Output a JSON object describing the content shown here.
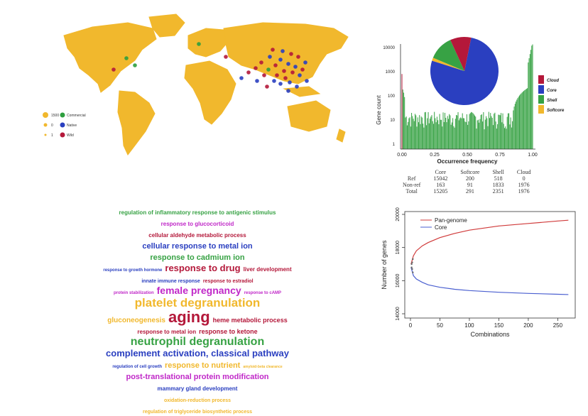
{
  "colors": {
    "map_land": "#f1b82d",
    "commercial": "#2e9e3e",
    "native": "#2a3fc0",
    "wild": "#b4183a",
    "cloud": "#b4183a",
    "core": "#2a3fc0",
    "shell": "#37a244",
    "softcore": "#f1b82d",
    "pan_line": "#d03a3a",
    "core_line": "#4a5fd0"
  },
  "map": {
    "legend": {
      "size_labels": [
        "1500",
        "0",
        "1"
      ],
      "type_labels": [
        "Commercial",
        "Native",
        "Wild"
      ]
    }
  },
  "hist": {
    "ylabel": "Gene count",
    "xlabel": "Occurrence frequency",
    "yticks": [
      "10000",
      "1000",
      "100",
      "10",
      "1"
    ],
    "xticks": [
      "0.00",
      "0.25",
      "0.50",
      "0.75",
      "1.00"
    ],
    "legend": [
      "Cloud",
      "Core",
      "Shell",
      "Softcore"
    ]
  },
  "table": {
    "headers": [
      "",
      "Core",
      "Softcore",
      "Shell",
      "Cloud"
    ],
    "rows": [
      [
        "Ref",
        "15042",
        "200",
        "518",
        "0"
      ],
      [
        "Non-ref",
        "163",
        "91",
        "1833",
        "1976"
      ],
      [
        "Total",
        "15205",
        "291",
        "2351",
        "1976"
      ]
    ]
  },
  "wordcloud": {
    "terms": [
      {
        "text": "regulation of inflammatory response to antigenic stimulus",
        "color": "#37a244",
        "size": 8
      },
      {
        "text": "response to glucocorticoid",
        "color": "#c028c8",
        "size": 8
      },
      {
        "text": "cellular aldehyde metabolic process",
        "color": "#b4183a",
        "size": 8
      },
      {
        "text": "cellular response to metal ion",
        "color": "#2a3fc0",
        "size": 11
      },
      {
        "text": "response to cadmium ion",
        "color": "#37a244",
        "size": 11
      },
      {
        "text": "response to growth hormone",
        "color": "#2a3fc0",
        "size": 6
      },
      {
        "text": "response to drug",
        "color": "#b4183a",
        "size": 13
      },
      {
        "text": "liver development",
        "color": "#b4183a",
        "size": 8
      },
      {
        "text": "innate immune response",
        "color": "#2a3fc0",
        "size": 7
      },
      {
        "text": "response to estradiol",
        "color": "#b4183a",
        "size": 7
      },
      {
        "text": "protein stabilization",
        "color": "#c028c8",
        "size": 6
      },
      {
        "text": "female pregnancy",
        "color": "#c028c8",
        "size": 14
      },
      {
        "text": "response to cAMP",
        "color": "#c028c8",
        "size": 6
      },
      {
        "text": "platelet degranulation",
        "color": "#f1b82d",
        "size": 17
      },
      {
        "text": "gluconeogenesis",
        "color": "#f1b82d",
        "size": 10
      },
      {
        "text": "aging",
        "color": "#b4183a",
        "size": 22
      },
      {
        "text": "heme metabolic process",
        "color": "#b4183a",
        "size": 9
      },
      {
        "text": "response to metal ion",
        "color": "#b4183a",
        "size": 8
      },
      {
        "text": "response to ketone",
        "color": "#b4183a",
        "size": 9
      },
      {
        "text": "neutrophil degranulation",
        "color": "#37a244",
        "size": 16
      },
      {
        "text": "complement activation, classical pathway",
        "color": "#2a3fc0",
        "size": 13
      },
      {
        "text": "regulation of cell growth",
        "color": "#2a3fc0",
        "size": 6
      },
      {
        "text": "response to nutrient",
        "color": "#f1b82d",
        "size": 11
      },
      {
        "text": "amyloid-beta clearance",
        "color": "#f1b82d",
        "size": 5
      },
      {
        "text": "post-translational protein modification",
        "color": "#c028c8",
        "size": 11
      },
      {
        "text": "mammary gland development",
        "color": "#2a3fc0",
        "size": 8
      },
      {
        "text": "oxidation-reduction process",
        "color": "#f1b82d",
        "size": 7
      },
      {
        "text": "regulation of triglyceride biosynthetic process",
        "color": "#f1b82d",
        "size": 7
      }
    ]
  },
  "line": {
    "ylabel": "Number of genes",
    "xlabel": "Combinations",
    "yticks": [
      "20000",
      "18000",
      "16000",
      "14000"
    ],
    "xticks": [
      "0",
      "50",
      "100",
      "150",
      "200",
      "250"
    ],
    "legend": [
      "Pan-genome",
      "Core"
    ]
  },
  "chart_data": [
    {
      "type": "bar",
      "ylabel": "Gene count",
      "xlabel": "Occurrence frequency",
      "yscale": "log",
      "ylim": [
        1,
        10000
      ],
      "xlim": [
        0,
        1
      ],
      "x_ticks": [
        0,
        0.25,
        0.5,
        0.75,
        1.0
      ],
      "note_values": {
        "peak_left": 1000,
        "peak_right": 15205,
        "baseline_typical": 15
      }
    },
    {
      "type": "pie",
      "categories": [
        "Cloud",
        "Core",
        "Shell",
        "Softcore"
      ],
      "values": [
        1976,
        15205,
        2351,
        291
      ]
    },
    {
      "type": "table",
      "headers": [
        "Core",
        "Softcore",
        "Shell",
        "Cloud"
      ],
      "rows": {
        "Ref": [
          15042,
          200,
          518,
          0
        ],
        "Non-ref": [
          163,
          91,
          1833,
          1976
        ],
        "Total": [
          15205,
          291,
          2351,
          1976
        ]
      }
    },
    {
      "type": "line",
      "xlabel": "Combinations",
      "ylabel": "Number of genes",
      "xlim": [
        0,
        270
      ],
      "ylim": [
        14000,
        20000
      ],
      "x": [
        1,
        5,
        10,
        20,
        30,
        50,
        75,
        100,
        150,
        200,
        250,
        268
      ],
      "series": [
        {
          "name": "Pan-genome",
          "values": [
            17000,
            17500,
            17800,
            18100,
            18300,
            18600,
            18850,
            19050,
            19300,
            19450,
            19600,
            19650
          ]
        },
        {
          "name": "Core",
          "values": [
            16800,
            16300,
            16100,
            15900,
            15750,
            15600,
            15480,
            15400,
            15300,
            15230,
            15180,
            15160
          ]
        }
      ]
    }
  ]
}
